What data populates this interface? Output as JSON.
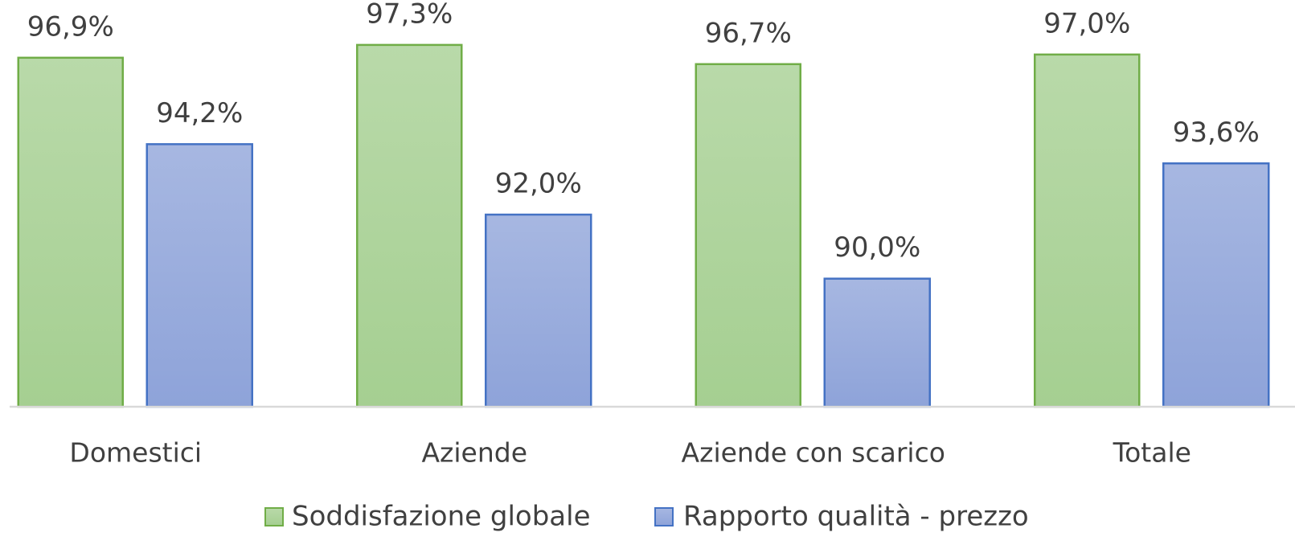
{
  "chart_data": {
    "type": "bar",
    "categories": [
      "Domestici",
      "Aziende",
      "Aziende con scarico",
      "Totale"
    ],
    "series": [
      {
        "name": "Soddisfazione globale",
        "color": "#a5cf91",
        "values": [
          96.9,
          97.3,
          96.7,
          97.0
        ],
        "value_labels": [
          "96,9%",
          "97,3%",
          "96,7%",
          "97,0%"
        ]
      },
      {
        "name": "Rapporto qualità - prezzo",
        "color": "#8ea3d9",
        "values": [
          94.2,
          92.0,
          90.0,
          93.6
        ],
        "value_labels": [
          "94,2%",
          "92,0%",
          "90,0%",
          "93,6%"
        ]
      }
    ],
    "ylim": [
      86,
      98
    ],
    "legend": "bottom"
  }
}
